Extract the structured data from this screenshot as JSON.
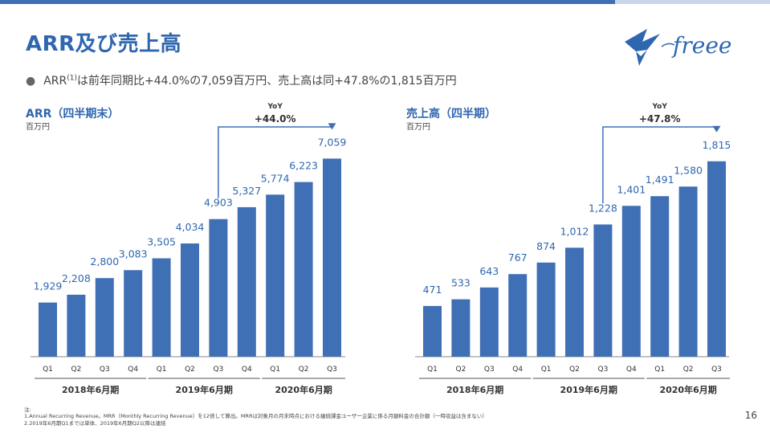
{
  "slide": {
    "title": "ARR及び売上高",
    "bullet_text_pre": "ARR",
    "bullet_sup": "(1)",
    "bullet_text_post": "は前年同期比+44.0%の7,059百万円、売上高は同+47.8%の1,815百万円",
    "page_number": "16",
    "footnote_label": "注:",
    "footnote_1": "1.Annual Recurring Revenue。MRR（Monthly Recurring Revenue）を12倍して算出。MRRは対象月の月末時点における継続課金ユーザー企業に係る月額料金の合計額（一時収益は含まない）",
    "footnote_2": "2.2019年6月期Q1までは単体、2019年6月期Q2以降は連結",
    "logo_text": "freee",
    "colors": {
      "accent": "#2f66b0",
      "bar": "#3f6fb5"
    }
  },
  "chart_data": [
    {
      "type": "bar",
      "title": "ARR（四半期末）",
      "unit": "百万円",
      "categories": [
        "Q1",
        "Q2",
        "Q3",
        "Q4",
        "Q1",
        "Q2",
        "Q3",
        "Q4",
        "Q1",
        "Q2",
        "Q3"
      ],
      "groups": [
        {
          "label": "2018年6月期",
          "count": 4
        },
        {
          "label": "2019年6月期",
          "count": 4
        },
        {
          "label": "2020年6月期",
          "count": 3
        }
      ],
      "values": [
        1929,
        2208,
        2800,
        3083,
        3505,
        4034,
        4903,
        5327,
        5774,
        6223,
        7059
      ],
      "labels": [
        "1,929",
        "2,208",
        "2,800",
        "3,083",
        "3,505",
        "4,034",
        "4,903",
        "5,327",
        "5,774",
        "6,223",
        "7,059"
      ],
      "yoy_label": "YoY",
      "yoy_value": "+44.0%",
      "yoy_from_index": 6,
      "yoy_to_index": 10,
      "ymax": 7700
    },
    {
      "type": "bar",
      "title": "売上高（四半期）",
      "unit": "百万円",
      "categories": [
        "Q1",
        "Q2",
        "Q3",
        "Q4",
        "Q1",
        "Q2",
        "Q3",
        "Q4",
        "Q1",
        "Q2",
        "Q3"
      ],
      "groups": [
        {
          "label": "2018年6月期",
          "count": 4
        },
        {
          "label": "2019年6月期",
          "count": 4
        },
        {
          "label": "2020年6月期",
          "count": 3
        }
      ],
      "values": [
        471,
        533,
        643,
        767,
        874,
        1012,
        1228,
        1401,
        1491,
        1580,
        1815
      ],
      "labels": [
        "471",
        "533",
        "643",
        "767",
        "874",
        "1,012",
        "1,228",
        "1,401",
        "1,491",
        "1,580",
        "1,815"
      ],
      "yoy_label": "YoY",
      "yoy_value": "+47.8%",
      "yoy_from_index": 6,
      "yoy_to_index": 10,
      "ymax": 1970
    }
  ]
}
